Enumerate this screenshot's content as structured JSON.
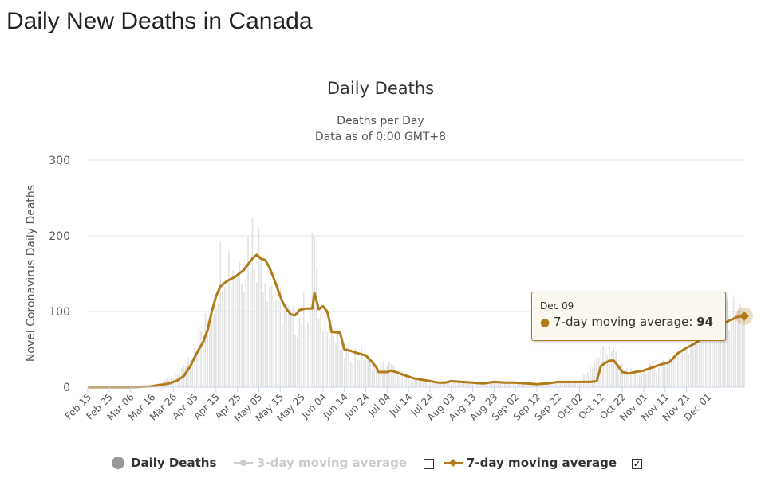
{
  "page_title": "Daily New Deaths in Canada",
  "colors": {
    "series_line": "#b07b18",
    "daily_bars": "#e1e1e1",
    "grid": "#e6e6e6",
    "legend_dot": "#999999"
  },
  "chart_data": {
    "type": "line",
    "title": "Daily Deaths",
    "subtitle_line1": "Deaths per Day",
    "subtitle_line2": "Data as of 0:00 GMT+8",
    "ylabel": "Novel Coronavirus Daily Deaths",
    "ylim": [
      0,
      300
    ],
    "yticks": [
      0,
      100,
      200,
      300
    ],
    "x_start_date": "Feb 15",
    "x_tick_labels": [
      "Feb 15",
      "Feb 25",
      "Mar 06",
      "Mar 16",
      "Mar 26",
      "Apr 05",
      "Apr 15",
      "Apr 25",
      "May 05",
      "May 15",
      "May 25",
      "Jun 04",
      "Jun 14",
      "Jun 24",
      "Jul 04",
      "Jul 14",
      "Jul 24",
      "Aug 03",
      "Aug 13",
      "Aug 23",
      "Sep 02",
      "Sep 12",
      "Sep 22",
      "Oct 02",
      "Oct 12",
      "Oct 22",
      "Nov 01",
      "Nov 11",
      "Nov 21",
      "Dec 01"
    ],
    "x_tick_interval_days": 10,
    "moving_average_anchors": [
      [
        0,
        0
      ],
      [
        20,
        0
      ],
      [
        29,
        1
      ],
      [
        34,
        3
      ],
      [
        38,
        5
      ],
      [
        42,
        9
      ],
      [
        45,
        15
      ],
      [
        48,
        28
      ],
      [
        51,
        45
      ],
      [
        54,
        60
      ],
      [
        56,
        75
      ],
      [
        58,
        100
      ],
      [
        60,
        120
      ],
      [
        62,
        133
      ],
      [
        65,
        140
      ],
      [
        69,
        146
      ],
      [
        73,
        155
      ],
      [
        77,
        170
      ],
      [
        79,
        175
      ],
      [
        81,
        170
      ],
      [
        83,
        168
      ],
      [
        85,
        158
      ],
      [
        87,
        144
      ],
      [
        89,
        128
      ],
      [
        91,
        113
      ],
      [
        93,
        103
      ],
      [
        95,
        96
      ],
      [
        97,
        95
      ],
      [
        99,
        102
      ],
      [
        102,
        104
      ],
      [
        105,
        104
      ],
      [
        106,
        125
      ],
      [
        108,
        103
      ],
      [
        110,
        107
      ],
      [
        112,
        100
      ],
      [
        113,
        88
      ],
      [
        114,
        73
      ],
      [
        118,
        72
      ],
      [
        120,
        50
      ],
      [
        123,
        48
      ],
      [
        126,
        45
      ],
      [
        130,
        42
      ],
      [
        133,
        33
      ],
      [
        135,
        26
      ],
      [
        136,
        20
      ],
      [
        138,
        20
      ],
      [
        140,
        20
      ],
      [
        142,
        22
      ],
      [
        145,
        19
      ],
      [
        148,
        16
      ],
      [
        152,
        12
      ],
      [
        156,
        10
      ],
      [
        160,
        8
      ],
      [
        164,
        6
      ],
      [
        167,
        6
      ],
      [
        170,
        8
      ],
      [
        175,
        7
      ],
      [
        180,
        6
      ],
      [
        185,
        5
      ],
      [
        190,
        7
      ],
      [
        195,
        6
      ],
      [
        200,
        6
      ],
      [
        205,
        5
      ],
      [
        210,
        4
      ],
      [
        215,
        5
      ],
      [
        220,
        7
      ],
      [
        225,
        7
      ],
      [
        230,
        7
      ],
      [
        235,
        7
      ],
      [
        238,
        8
      ],
      [
        240,
        28
      ],
      [
        242,
        32
      ],
      [
        244,
        35
      ],
      [
        246,
        35
      ],
      [
        248,
        28
      ],
      [
        250,
        20
      ],
      [
        253,
        18
      ],
      [
        256,
        20
      ],
      [
        260,
        22
      ],
      [
        264,
        26
      ],
      [
        268,
        30
      ],
      [
        272,
        33
      ],
      [
        276,
        45
      ],
      [
        280,
        52
      ],
      [
        284,
        58
      ],
      [
        288,
        66
      ],
      [
        292,
        75
      ],
      [
        296,
        82
      ],
      [
        300,
        88
      ],
      [
        304,
        93
      ],
      [
        307,
        94
      ]
    ],
    "daily_deaths_anchors": [
      [
        0,
        0
      ],
      [
        25,
        0
      ],
      [
        30,
        2
      ],
      [
        40,
        12
      ],
      [
        45,
        25
      ],
      [
        50,
        58
      ],
      [
        55,
        80
      ],
      [
        60,
        130
      ],
      [
        63,
        180
      ],
      [
        66,
        170
      ],
      [
        70,
        160
      ],
      [
        74,
        180
      ],
      [
        77,
        200
      ],
      [
        80,
        185
      ],
      [
        84,
        150
      ],
      [
        88,
        120
      ],
      [
        92,
        100
      ],
      [
        96,
        85
      ],
      [
        100,
        95
      ],
      [
        104,
        110
      ],
      [
        106,
        220
      ],
      [
        108,
        80
      ],
      [
        112,
        100
      ],
      [
        116,
        60
      ],
      [
        120,
        45
      ],
      [
        125,
        45
      ],
      [
        130,
        40
      ],
      [
        135,
        25
      ],
      [
        140,
        30
      ],
      [
        145,
        20
      ],
      [
        150,
        12
      ],
      [
        160,
        8
      ],
      [
        170,
        7
      ],
      [
        180,
        6
      ],
      [
        190,
        7
      ],
      [
        200,
        6
      ],
      [
        210,
        4
      ],
      [
        220,
        6
      ],
      [
        230,
        7
      ],
      [
        240,
        45
      ],
      [
        244,
        60
      ],
      [
        248,
        30
      ],
      [
        255,
        18
      ],
      [
        260,
        22
      ],
      [
        270,
        35
      ],
      [
        280,
        55
      ],
      [
        290,
        80
      ],
      [
        300,
        95
      ],
      [
        307,
        100
      ]
    ],
    "series": [
      {
        "name": "Daily Deaths",
        "kind": "bar",
        "enabled": true
      },
      {
        "name": "3-day moving average",
        "kind": "line",
        "enabled": false
      },
      {
        "name": "7-day moving average",
        "kind": "line",
        "enabled": true
      }
    ],
    "tooltip": {
      "date": "Dec 09",
      "series_label": "7-day moving average",
      "value": 94
    }
  },
  "legend": {
    "daily_deaths": "Daily Deaths",
    "three_day": "3-day moving average",
    "seven_day": "7-day moving average",
    "three_day_checked": "",
    "seven_day_checked": "✓"
  }
}
